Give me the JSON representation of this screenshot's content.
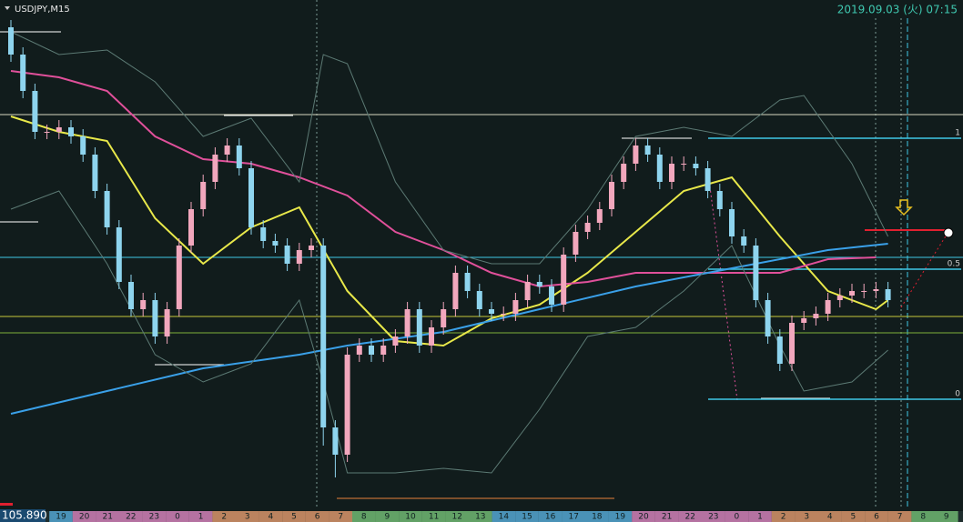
{
  "chart_data": {
    "type": "candlestick",
    "title": "USDJPY,M15",
    "timestamp": "2019.09.03 (火) 07:15",
    "price_label": "105.890",
    "ylim": [
      105.864,
      106.424
    ],
    "up_color": "#f2a7bd",
    "down_color": "#8ed4ee",
    "open": [
      106.394,
      106.364,
      106.324,
      106.279,
      106.279,
      106.284,
      106.274,
      106.254,
      106.214,
      106.174,
      106.114,
      106.084,
      106.094,
      106.054,
      106.084,
      106.154,
      106.194,
      106.224,
      106.254,
      106.264,
      106.239,
      106.174,
      106.159,
      106.154,
      106.134,
      106.149,
      106.154,
      105.954,
      105.924,
      106.034,
      106.044,
      106.034,
      106.044,
      106.054,
      106.084,
      106.044,
      106.064,
      106.084,
      106.124,
      106.104,
      106.084,
      106.079,
      106.079,
      106.094,
      106.114,
      106.109,
      106.089,
      106.144,
      106.169,
      106.179,
      106.194,
      106.224,
      106.244,
      106.264,
      106.254,
      106.224,
      106.244,
      106.244,
      106.239,
      106.214,
      106.194,
      106.164,
      106.154,
      106.094,
      106.054,
      106.024,
      106.069,
      106.074,
      106.079,
      106.094,
      106.099,
      106.104,
      106.104,
      106.106
    ],
    "high": [
      106.402,
      106.372,
      106.332,
      106.287,
      106.292,
      106.292,
      106.282,
      106.262,
      106.222,
      106.182,
      106.122,
      106.102,
      106.102,
      106.092,
      106.162,
      106.202,
      106.232,
      106.262,
      106.272,
      106.272,
      106.247,
      106.182,
      106.167,
      106.162,
      106.157,
      106.162,
      106.162,
      105.962,
      106.042,
      106.052,
      106.052,
      106.052,
      106.062,
      106.092,
      106.092,
      106.072,
      106.092,
      106.132,
      106.132,
      106.112,
      106.092,
      106.087,
      106.102,
      106.122,
      106.122,
      106.117,
      106.152,
      106.177,
      106.187,
      106.202,
      106.232,
      106.252,
      106.272,
      106.272,
      106.262,
      106.252,
      106.252,
      106.252,
      106.247,
      106.222,
      106.202,
      106.172,
      106.162,
      106.102,
      106.062,
      106.077,
      106.082,
      106.087,
      106.102,
      106.107,
      106.112,
      106.112,
      106.114,
      106.114
    ],
    "low": [
      106.356,
      106.316,
      106.271,
      106.271,
      106.271,
      106.266,
      106.246,
      106.206,
      106.166,
      106.106,
      106.076,
      106.076,
      106.046,
      106.046,
      106.076,
      106.146,
      106.186,
      106.216,
      106.246,
      106.231,
      106.166,
      106.151,
      106.146,
      106.126,
      106.126,
      106.141,
      105.934,
      105.899,
      105.916,
      106.026,
      106.026,
      106.026,
      106.036,
      106.046,
      106.036,
      106.036,
      106.056,
      106.076,
      106.096,
      106.076,
      106.071,
      106.071,
      106.071,
      106.086,
      106.101,
      106.081,
      106.081,
      106.136,
      106.161,
      106.171,
      106.186,
      106.216,
      106.236,
      106.246,
      106.216,
      106.216,
      106.236,
      106.231,
      106.206,
      106.186,
      106.156,
      106.146,
      106.086,
      106.046,
      106.016,
      106.016,
      106.061,
      106.066,
      106.071,
      106.086,
      106.091,
      106.096,
      106.096,
      106.086
    ],
    "close": [
      106.364,
      106.324,
      106.279,
      106.279,
      106.284,
      106.274,
      106.254,
      106.214,
      106.174,
      106.114,
      106.084,
      106.094,
      106.054,
      106.084,
      106.154,
      106.194,
      106.224,
      106.254,
      106.264,
      106.239,
      106.174,
      106.159,
      106.154,
      106.134,
      106.149,
      106.154,
      105.954,
      105.924,
      106.034,
      106.044,
      106.034,
      106.044,
      106.054,
      106.084,
      106.044,
      106.064,
      106.084,
      106.124,
      106.104,
      106.084,
      106.079,
      106.079,
      106.094,
      106.114,
      106.109,
      106.089,
      106.144,
      106.169,
      106.179,
      106.194,
      106.224,
      106.244,
      106.264,
      106.254,
      106.224,
      106.244,
      106.244,
      106.239,
      106.214,
      106.194,
      106.164,
      106.154,
      106.094,
      106.054,
      106.024,
      106.069,
      106.074,
      106.079,
      106.094,
      106.099,
      106.104,
      106.104,
      106.106,
      106.094
    ],
    "lines": [
      {
        "color": "#e8e84a",
        "x": [
          0,
          4,
          8,
          12,
          16,
          20,
          24,
          28,
          32,
          36,
          40,
          44,
          48,
          52,
          56,
          60,
          64,
          68,
          72,
          73
        ],
        "values": [
          106.296,
          106.279,
          106.269,
          106.184,
          106.134,
          106.174,
          106.196,
          106.104,
          106.049,
          106.044,
          106.074,
          106.089,
          106.124,
          106.169,
          106.214,
          106.229,
          106.164,
          106.104,
          106.084,
          106.094
        ]
      },
      {
        "color": "#e0509a",
        "x": [
          0,
          4,
          8,
          12,
          16,
          20,
          24,
          28,
          32,
          36,
          40,
          44,
          48,
          52,
          56,
          60,
          64,
          68,
          72
        ],
        "values": [
          106.346,
          106.339,
          106.324,
          106.274,
          106.249,
          106.244,
          106.229,
          106.209,
          106.169,
          106.149,
          106.124,
          106.109,
          106.114,
          106.124,
          106.124,
          106.124,
          106.124,
          106.139,
          106.141
        ]
      },
      {
        "color": "#3aa0e8",
        "x": [
          0,
          8,
          16,
          24,
          28,
          36,
          44,
          52,
          60,
          68,
          73
        ],
        "values": [
          105.969,
          105.994,
          106.019,
          106.034,
          106.044,
          106.059,
          106.084,
          106.109,
          106.129,
          106.149,
          106.156
        ]
      },
      {
        "color": "#5c7a74",
        "x": [
          0,
          4,
          8,
          12,
          16,
          20,
          24,
          26,
          28,
          32,
          36,
          40,
          44,
          48,
          52,
          56,
          60,
          64,
          66,
          70,
          73
        ],
        "values": [
          106.389,
          106.364,
          106.369,
          106.334,
          106.274,
          106.294,
          106.224,
          106.364,
          106.354,
          106.224,
          106.149,
          106.134,
          106.134,
          106.194,
          106.274,
          106.284,
          106.274,
          106.314,
          106.319,
          106.244,
          106.164
        ]
      },
      {
        "color": "#5c7a74",
        "x": [
          0,
          4,
          8,
          12,
          16,
          20,
          24,
          26,
          28,
          32,
          36,
          40,
          44,
          48,
          52,
          56,
          60,
          64,
          66,
          70,
          73
        ],
        "values": [
          106.194,
          106.214,
          106.134,
          106.034,
          106.004,
          106.024,
          106.094,
          106.004,
          105.904,
          105.904,
          105.909,
          105.904,
          105.974,
          106.054,
          106.064,
          106.104,
          106.154,
          106.044,
          105.994,
          106.004,
          106.039
        ]
      }
    ],
    "levels": [
      {
        "color": "#d8d8c0",
        "value": 106.298
      },
      {
        "color": "#3fc8e6",
        "value": 106.141
      },
      {
        "color": "#c8c83a",
        "value": 106.076
      },
      {
        "color": "#7fb03a",
        "value": 106.058
      }
    ],
    "fib": {
      "color": "#3fc8e6",
      "levels": [
        {
          "price": 106.272,
          "label": "1"
        },
        {
          "price": 106.128,
          "label": "0.5"
        },
        {
          "price": 105.985,
          "label": "0"
        }
      ]
    },
    "time_labels": [
      "19",
      "20",
      "21",
      "22",
      "23",
      "0",
      "1",
      "2",
      "3",
      "4",
      "5",
      "6",
      "7",
      "8",
      "9",
      "10",
      "11",
      "12",
      "13",
      "14",
      "15",
      "16",
      "17",
      "18",
      "19",
      "20",
      "21",
      "22",
      "23",
      "0",
      "1",
      "2",
      "3",
      "4",
      "5",
      "6",
      "7",
      "8",
      "9"
    ]
  }
}
